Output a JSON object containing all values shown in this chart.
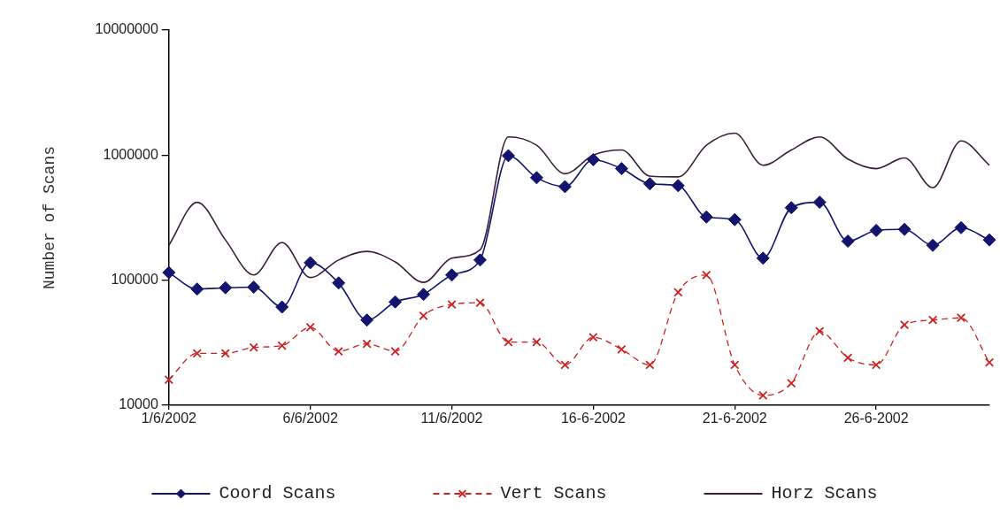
{
  "chart_data": {
    "type": "line",
    "ylabel": "Number of Scans",
    "categories": [
      "1/6/2002",
      null,
      null,
      null,
      null,
      "6/6/2002",
      null,
      null,
      null,
      null,
      "11/6/2002",
      null,
      null,
      null,
      null,
      "16-6-2002",
      null,
      null,
      null,
      null,
      "21-6-2002",
      null,
      null,
      null,
      null,
      "26-6-2002",
      null,
      null,
      null,
      null
    ],
    "series": [
      {
        "name": "Coord Scans",
        "color": "#14146e",
        "marker": "diamond",
        "line_style": "solid",
        "values": [
          115000,
          85000,
          87000,
          88000,
          61000,
          138000,
          95000,
          48000,
          67000,
          77000,
          110000,
          145000,
          990000,
          660000,
          560000,
          920000,
          780000,
          590000,
          570000,
          320000,
          305000,
          150000,
          380000,
          420000,
          205000,
          250000,
          255000,
          190000,
          263000,
          210000
        ]
      },
      {
        "name": "Vert Scans",
        "color": "#cc2222",
        "marker": "cross",
        "line_style": "dashed",
        "values": [
          16000,
          26000,
          26000,
          29000,
          30000,
          42000,
          27000,
          31000,
          27000,
          52000,
          64000,
          66000,
          32000,
          32000,
          21000,
          35000,
          28000,
          21000,
          80000,
          110000,
          21000,
          12000,
          15000,
          39000,
          24000,
          21000,
          44000,
          48000,
          50000,
          22000
        ]
      },
      {
        "name": "Horz Scans",
        "color": "#3b1e3b",
        "marker": "none",
        "line_style": "solid",
        "values": [
          190000,
          420000,
          210000,
          110000,
          200000,
          105000,
          145000,
          170000,
          140000,
          96000,
          150000,
          175000,
          1400000,
          1200000,
          710000,
          1000000,
          1100000,
          680000,
          670000,
          1200000,
          1500000,
          830000,
          1100000,
          1400000,
          930000,
          780000,
          950000,
          550000,
          1300000,
          830000
        ]
      }
    ],
    "log": "y",
    "ylim": [
      10000,
      10000000
    ],
    "yticks": [
      10000,
      100000,
      1000000,
      10000000
    ],
    "grid": false,
    "legend": "bottom"
  }
}
